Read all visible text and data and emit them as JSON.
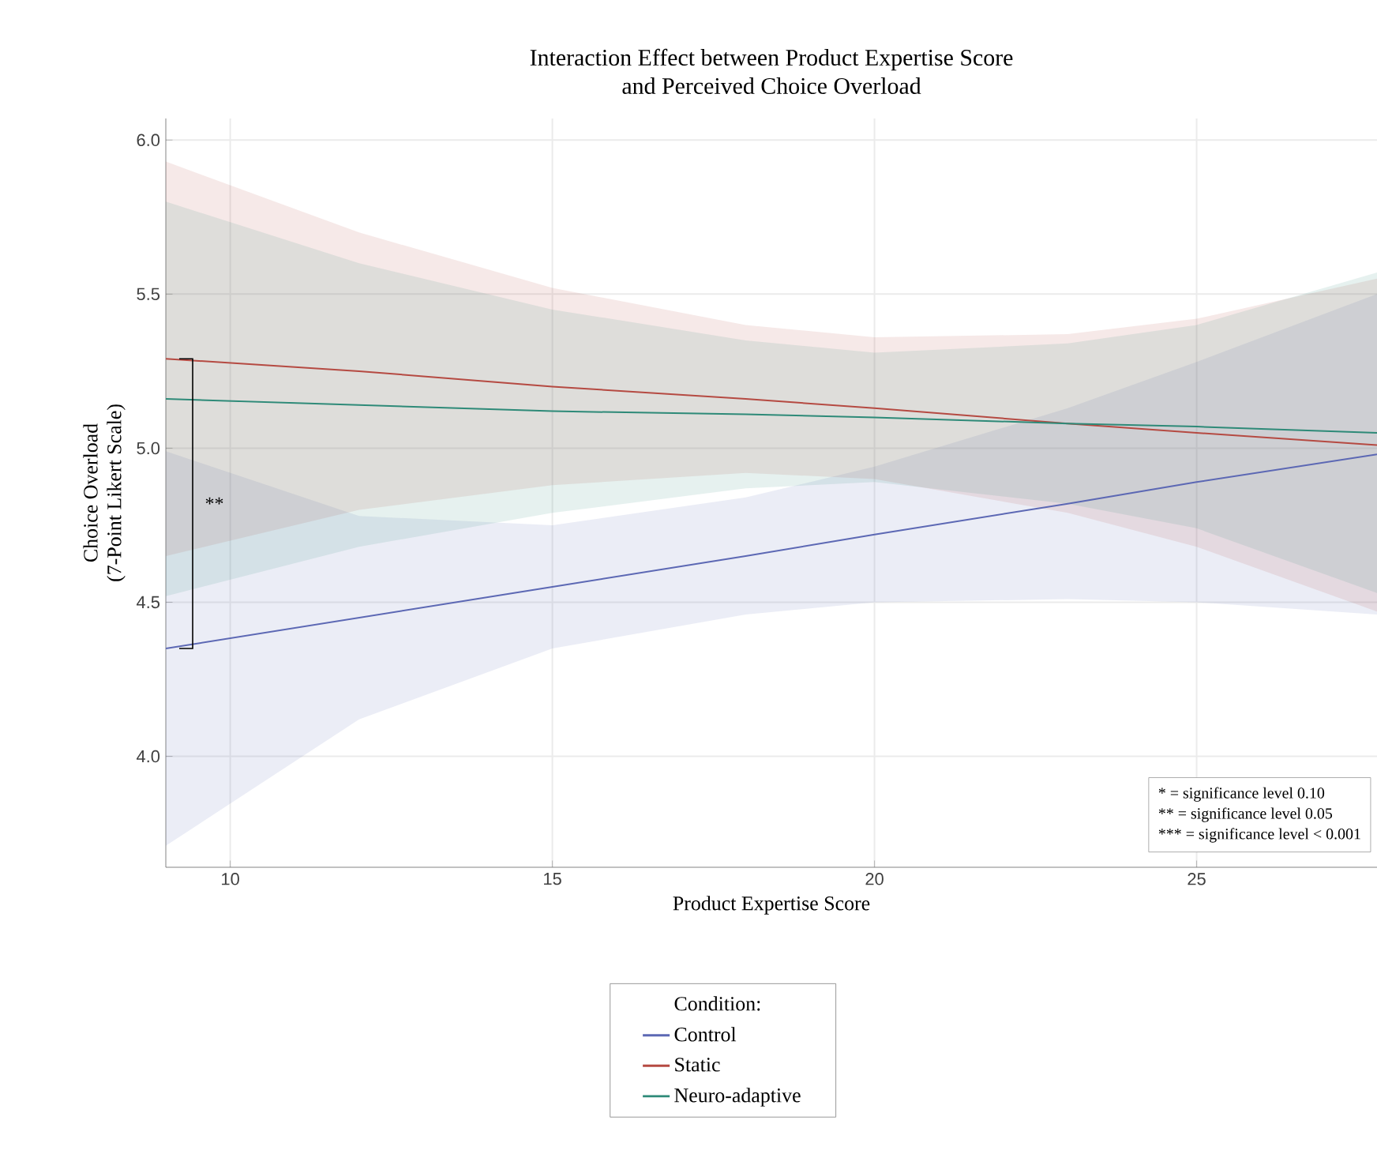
{
  "chart_data": {
    "type": "line",
    "title": "Interaction Effect between Product Expertise Score\nand Perceived Choice Overload",
    "xlabel": "Product Expertise Score",
    "ylabel": "Choice Overload\n(7-Point Likert Scale)",
    "legend_title": "Condition:",
    "legend": "bottom",
    "grid": true,
    "xlim": [
      9,
      27.8
    ],
    "ylim": [
      3.64,
      6.07
    ],
    "xticks": [
      10,
      15,
      20,
      25
    ],
    "yticks": [
      {
        "value": 4,
        "label": "4.0"
      },
      {
        "value": 4.5,
        "label": "4.5"
      },
      {
        "value": 5,
        "label": "5.0"
      },
      {
        "value": 5.5,
        "label": "5.5"
      },
      {
        "value": 6,
        "label": "6.0"
      }
    ],
    "series": [
      {
        "name": "Control",
        "color": "#5c68b4",
        "x": [
          9,
          12,
          15,
          18,
          20,
          23,
          25,
          27.8
        ],
        "values": [
          4.35,
          4.45,
          4.55,
          4.65,
          4.72,
          4.82,
          4.89,
          4.98
        ],
        "lower": [
          3.71,
          4.12,
          4.35,
          4.46,
          4.5,
          4.51,
          4.5,
          4.46
        ],
        "upper": [
          4.99,
          4.78,
          4.75,
          4.84,
          4.94,
          5.13,
          5.28,
          5.5
        ]
      },
      {
        "name": "Static",
        "color": "#b54a42",
        "x": [
          9,
          12,
          15,
          18,
          20,
          23,
          25,
          27.8
        ],
        "values": [
          5.29,
          5.25,
          5.2,
          5.16,
          5.13,
          5.08,
          5.05,
          5.01
        ],
        "lower": [
          4.65,
          4.8,
          4.88,
          4.92,
          4.9,
          4.79,
          4.68,
          4.47
        ],
        "upper": [
          5.93,
          5.7,
          5.52,
          5.4,
          5.36,
          5.37,
          5.42,
          5.55
        ]
      },
      {
        "name": "Neuro-adaptive",
        "color": "#2e8a78",
        "x": [
          9,
          12,
          15,
          18,
          20,
          23,
          25,
          27.8
        ],
        "values": [
          5.16,
          5.14,
          5.12,
          5.11,
          5.1,
          5.08,
          5.07,
          5.05
        ],
        "lower": [
          4.52,
          4.68,
          4.79,
          4.87,
          4.89,
          4.82,
          4.74,
          4.53
        ],
        "upper": [
          5.8,
          5.6,
          5.45,
          5.35,
          5.31,
          5.34,
          5.4,
          5.57
        ]
      }
    ],
    "annotations": [
      "**",
      "*     =  significance level 0.10",
      "**   =  significance level 0.05",
      "*** =  significance level < 0.001"
    ]
  }
}
